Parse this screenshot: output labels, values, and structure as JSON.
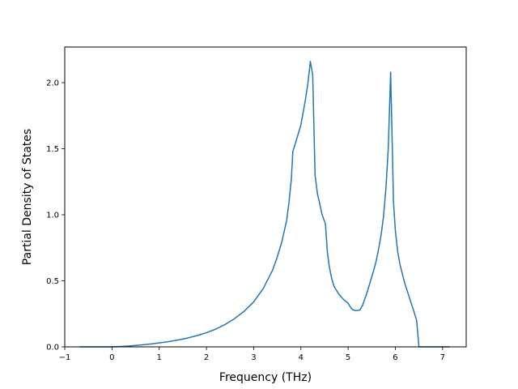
{
  "chart_data": {
    "type": "line",
    "xlabel": "Frequency (THz)",
    "ylabel": "Partial Density of States",
    "xlim": [
      -1.0,
      7.5
    ],
    "ylim": [
      0.0,
      2.27
    ],
    "x_ticks": [
      -1,
      0,
      1,
      2,
      3,
      4,
      5,
      6,
      7
    ],
    "y_ticks": [
      0.0,
      0.5,
      1.0,
      1.5,
      2.0
    ],
    "x_tick_labels": [
      "−1",
      "0",
      "1",
      "2",
      "3",
      "4",
      "5",
      "6",
      "7"
    ],
    "y_tick_labels": [
      "0.0",
      "0.5",
      "1.0",
      "1.5",
      "2.0"
    ],
    "grid": false,
    "line_color": "#1f77b4",
    "series": [
      {
        "x": [
          -0.68,
          -0.2,
          0.0,
          0.2,
          0.4,
          0.6,
          0.8,
          1.0,
          1.2,
          1.4,
          1.6,
          1.8,
          2.0,
          2.2,
          2.4,
          2.6,
          2.8,
          3.0,
          3.2,
          3.4,
          3.5,
          3.6,
          3.7,
          3.75,
          3.8,
          3.83,
          3.9,
          4.0,
          4.05,
          4.1,
          4.15,
          4.2,
          4.25,
          4.3,
          4.35,
          4.4,
          4.45,
          4.52,
          4.56,
          4.6,
          4.65,
          4.7,
          4.8,
          4.9,
          5.0,
          5.05,
          5.1,
          5.15,
          5.2,
          5.25,
          5.3,
          5.35,
          5.4,
          5.45,
          5.5,
          5.55,
          5.6,
          5.65,
          5.7,
          5.75,
          5.8,
          5.85,
          5.9,
          5.93,
          5.96,
          6.0,
          6.05,
          6.1,
          6.2,
          6.3,
          6.4,
          6.45,
          6.5,
          6.6,
          6.8,
          7.0,
          7.15
        ],
        "y": [
          0.0,
          0.0,
          0.0,
          0.003,
          0.008,
          0.014,
          0.021,
          0.03,
          0.04,
          0.052,
          0.067,
          0.085,
          0.107,
          0.135,
          0.17,
          0.215,
          0.27,
          0.34,
          0.44,
          0.58,
          0.68,
          0.8,
          0.96,
          1.1,
          1.28,
          1.48,
          1.56,
          1.68,
          1.78,
          1.88,
          2.0,
          2.16,
          2.06,
          1.3,
          1.16,
          1.08,
          1.0,
          0.93,
          0.72,
          0.61,
          0.52,
          0.46,
          0.4,
          0.36,
          0.33,
          0.3,
          0.28,
          0.275,
          0.275,
          0.28,
          0.31,
          0.36,
          0.41,
          0.47,
          0.53,
          0.59,
          0.66,
          0.75,
          0.85,
          0.99,
          1.2,
          1.5,
          2.08,
          1.6,
          1.1,
          0.88,
          0.72,
          0.62,
          0.48,
          0.37,
          0.26,
          0.2,
          0.0,
          0.0,
          0.0,
          0.0,
          0.0
        ]
      }
    ]
  }
}
